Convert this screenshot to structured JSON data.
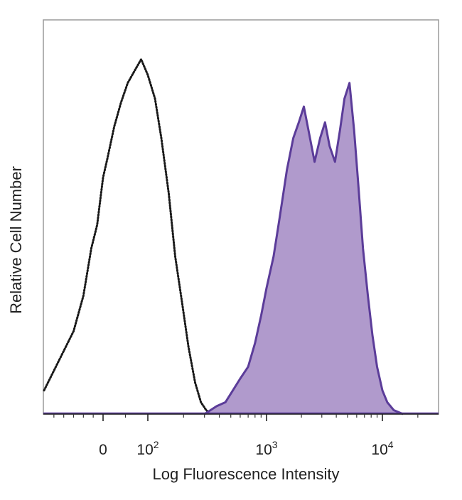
{
  "chart_data": {
    "type": "area",
    "title": "",
    "xlabel": "Log Fluorescence Intensity",
    "ylabel": "Relative Cell Number",
    "x_scale": "biexponential",
    "x_ticks": [
      {
        "value": 0,
        "base": "0",
        "exp": ""
      },
      {
        "value": 100,
        "base": "10",
        "exp": "2"
      },
      {
        "value": 1000,
        "base": "10",
        "exp": "3"
      },
      {
        "value": 10000,
        "base": "10",
        "exp": "4"
      }
    ],
    "xlim": [
      -300,
      30000
    ],
    "ylim": [
      0,
      100
    ],
    "y_ticks_shown": false,
    "grid": false,
    "legend": "none",
    "series": [
      {
        "style": "dotted-outline",
        "color": "#1a1a1a",
        "x": [
          -300,
          -220,
          -150,
          -100,
          -60,
          -30,
          -10,
          0,
          10,
          25,
          40,
          55,
          70,
          85,
          100,
          115,
          130,
          150,
          170,
          195,
          220,
          250,
          280,
          310,
          340
        ],
        "y": [
          6,
          14,
          21,
          30,
          42,
          48,
          56,
          60,
          65,
          73,
          79,
          84,
          87,
          90,
          86,
          80,
          70,
          56,
          40,
          28,
          17,
          8,
          3,
          1,
          0
        ]
      },
      {
        "style": "filled",
        "color": "#5b3c99",
        "fill": "#a78fc6",
        "x": [
          300,
          380,
          450,
          520,
          600,
          700,
          800,
          900,
          1000,
          1150,
          1300,
          1500,
          1700,
          1900,
          2100,
          2300,
          2600,
          2900,
          3200,
          3500,
          3900,
          4300,
          4700,
          5200,
          5700,
          6200,
          6800,
          7500,
          8200,
          9000,
          10000,
          11000,
          12500,
          15000
        ],
        "y": [
          0,
          2,
          3,
          6,
          9,
          12,
          18,
          25,
          32,
          40,
          50,
          62,
          70,
          74,
          78,
          72,
          64,
          70,
          74,
          68,
          64,
          72,
          80,
          84,
          72,
          58,
          42,
          30,
          20,
          12,
          6,
          3,
          1,
          0
        ]
      }
    ]
  }
}
